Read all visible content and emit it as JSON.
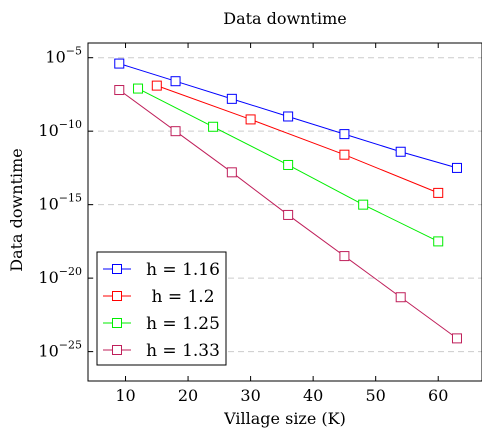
{
  "chart_data": {
    "type": "line",
    "title": "Data downtime",
    "xlabel": "Village size (K)",
    "ylabel": "Data downtime",
    "xlim": [
      4,
      67
    ],
    "ylim_exponent": [
      -27,
      -4
    ],
    "yscale": "log",
    "xticks": [
      10,
      20,
      30,
      40,
      50,
      60
    ],
    "yticks_exponent": [
      -5,
      -10,
      -15,
      -20,
      -25
    ],
    "grid": "horizontal dashed",
    "legend_position": "bottom-left",
    "series": [
      {
        "name": "h = 1.16",
        "color": "#0000ff",
        "x": [
          9,
          18,
          27,
          36,
          45,
          54,
          63
        ],
        "y_exponent": [
          -5.4,
          -6.6,
          -7.8,
          -9.0,
          -10.2,
          -11.4,
          -12.5
        ]
      },
      {
        "name": "h = 1.2",
        "color": "#ff0000",
        "x": [
          15,
          30,
          45,
          60
        ],
        "y_exponent": [
          -6.9,
          -9.2,
          -11.6,
          -14.2
        ]
      },
      {
        "name": "h = 1.25",
        "color": "#00ee00",
        "x": [
          12,
          24,
          36,
          48,
          60
        ],
        "y_exponent": [
          -7.1,
          -9.7,
          -12.3,
          -15.0,
          -17.5
        ]
      },
      {
        "name": "h = 1.33",
        "color": "#bf1f5a",
        "x": [
          9,
          18,
          27,
          36,
          45,
          54,
          63
        ],
        "y_exponent": [
          -7.2,
          -10.0,
          -12.8,
          -15.7,
          -18.5,
          -21.3,
          -24.1
        ]
      }
    ]
  }
}
